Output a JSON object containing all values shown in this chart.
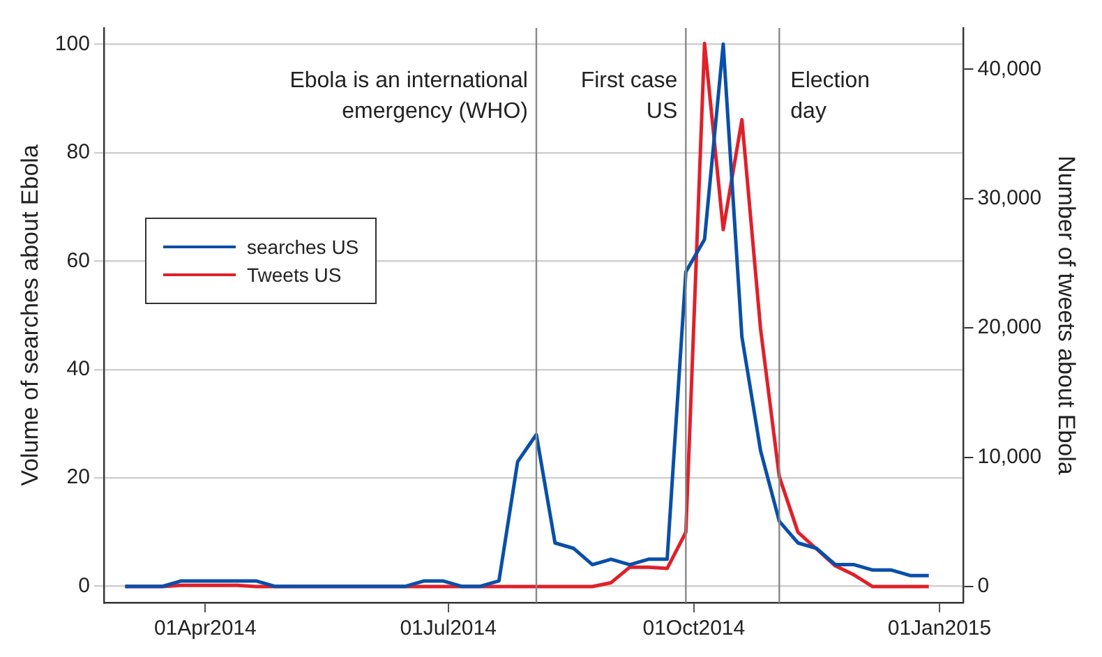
{
  "chart_data": {
    "type": "line",
    "x": [
      "2014-03-02",
      "2014-03-09",
      "2014-03-16",
      "2014-03-23",
      "2014-03-30",
      "2014-04-06",
      "2014-04-13",
      "2014-04-20",
      "2014-04-27",
      "2014-05-04",
      "2014-05-11",
      "2014-05-18",
      "2014-05-25",
      "2014-06-01",
      "2014-06-08",
      "2014-06-15",
      "2014-06-22",
      "2014-06-29",
      "2014-07-06",
      "2014-07-13",
      "2014-07-20",
      "2014-07-27",
      "2014-08-03",
      "2014-08-10",
      "2014-08-17",
      "2014-08-24",
      "2014-08-31",
      "2014-09-07",
      "2014-09-14",
      "2014-09-21",
      "2014-09-28",
      "2014-10-05",
      "2014-10-12",
      "2014-10-19",
      "2014-10-26",
      "2014-11-02",
      "2014-11-09",
      "2014-11-16",
      "2014-11-23",
      "2014-11-30",
      "2014-12-07",
      "2014-12-14",
      "2014-12-21",
      "2014-12-28"
    ],
    "series": [
      {
        "name": "searches US",
        "color": "#0a4fa8",
        "values": [
          0,
          0,
          0,
          1,
          1,
          1,
          1,
          1,
          0,
          0,
          0,
          0,
          0,
          0,
          0,
          0,
          1,
          1,
          0,
          0,
          1,
          23,
          28,
          8,
          7,
          4,
          5,
          4,
          5,
          5,
          58,
          64,
          100,
          46,
          25,
          12,
          8,
          7,
          4,
          4,
          3,
          3,
          2,
          2
        ]
      },
      {
        "name": "Tweets US",
        "color": "#e0202a",
        "axis": "y2",
        "values": [
          0,
          0,
          0,
          100,
          100,
          100,
          100,
          0,
          0,
          0,
          0,
          0,
          0,
          0,
          0,
          0,
          0,
          0,
          0,
          0,
          0,
          0,
          0,
          0,
          0,
          0,
          300,
          1500,
          1500,
          1400,
          4200,
          42000,
          27600,
          36100,
          19900,
          8500,
          4200,
          2900,
          1600,
          900,
          0,
          0,
          0,
          0
        ]
      }
    ],
    "ylabel": "Volume of searches about Ebola",
    "y2label": "Number of tweets about Ebola",
    "xlim": [
      "2014-02-22",
      "2015-01-10"
    ],
    "xticks": [
      {
        "value": "2014-04-01",
        "label": "01Apr2014"
      },
      {
        "value": "2014-07-01",
        "label": "01Jul2014"
      },
      {
        "value": "2014-10-01",
        "label": "01Oct2014"
      },
      {
        "value": "2015-01-01",
        "label": "01Jan2015"
      }
    ],
    "ylim": [
      -3,
      103
    ],
    "yticks": [
      0,
      20,
      40,
      60,
      80,
      100
    ],
    "y2lim": [
      -1240,
      43200
    ],
    "y2ticks": [
      0,
      {
        "value": 10000,
        "label": "10,000"
      },
      {
        "value": 20000,
        "label": "20,000"
      },
      {
        "value": 30000,
        "label": "30,000"
      },
      {
        "value": 40000,
        "label": "40,000"
      }
    ],
    "ref_lines": [
      {
        "axis": "x",
        "value": "2014-08-03",
        "label": "Ebola is an international\nemergency (WHO)",
        "color": "#888888"
      },
      {
        "axis": "x",
        "value": "2014-09-28",
        "label": "First case\nUS",
        "color": "#888888"
      },
      {
        "axis": "x",
        "value": "2014-11-02",
        "label": "Election\nday",
        "color": "#888888"
      }
    ],
    "grid": "y",
    "legend": "left",
    "line_style": "solid",
    "marker": "none"
  }
}
